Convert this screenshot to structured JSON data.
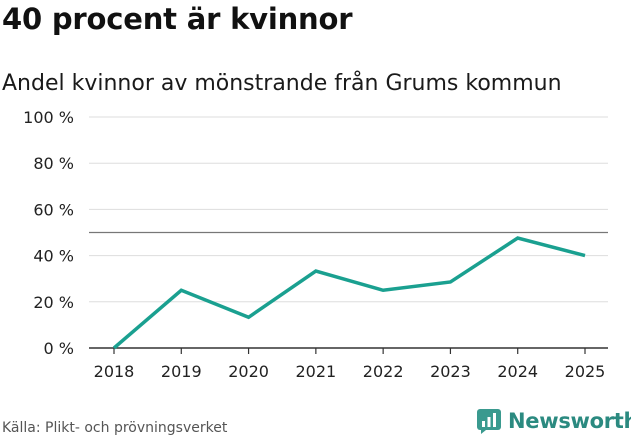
{
  "title": "40 procent är kvinnor",
  "subtitle": "Andel kvinnor av mönstrande från Grums kommun",
  "source": "Källa: Plikt- och prövningsverket",
  "brand": "Newsworthy",
  "colors": {
    "line": "#1aa090",
    "brand": "#2b8a80",
    "grid": "#dddddd",
    "reference": "#777777"
  },
  "chart_data": {
    "type": "line",
    "title": "40 procent är kvinnor",
    "subtitle": "Andel kvinnor av mönstrande från Grums kommun",
    "x": [
      "2018",
      "2019",
      "2020",
      "2021",
      "2022",
      "2023",
      "2024",
      "2025"
    ],
    "series": [
      {
        "name": "Andel kvinnor",
        "values": [
          0,
          25,
          13.3,
          33.3,
          25,
          28.6,
          47.6,
          40
        ]
      }
    ],
    "ylim": [
      0,
      100
    ],
    "yticks": [
      0,
      20,
      40,
      60,
      80,
      100
    ],
    "ytick_labels": [
      "0 %",
      "20 %",
      "40 %",
      "60 %",
      "80 %",
      "100 %"
    ],
    "reference_line": 50,
    "grid": true,
    "xlabel": "",
    "ylabel": ""
  }
}
